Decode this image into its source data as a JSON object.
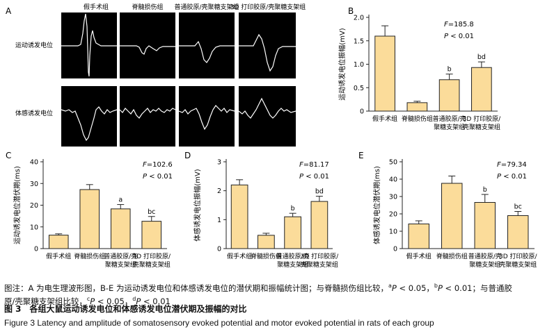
{
  "panel_a": {
    "letter": "A",
    "columns": [
      "假手术组",
      "脊髓损伤组",
      "普通胶原/壳聚糖支架组",
      "3D 打印胶原/壳聚糖支架组"
    ],
    "rows": [
      "运动诱发电位",
      "体感诱发电位"
    ]
  },
  "chart_data": [
    {
      "letter": "B",
      "type": "bar",
      "ylabel": "运动诱发电位振幅(mV)",
      "categories": [
        [
          "假手术组"
        ],
        [
          "脊髓损伤组"
        ],
        [
          "普通胶原/壳",
          "聚糖支架组"
        ],
        [
          "3D 打印胶原/",
          "壳聚糖支架组"
        ]
      ],
      "values": [
        1.6,
        0.18,
        0.67,
        0.93
      ],
      "errors": [
        0.22,
        0.03,
        0.12,
        0.12
      ],
      "marks": [
        "",
        "",
        "b",
        "bd"
      ],
      "ylim": [
        0,
        2.0
      ],
      "yticks": [
        0,
        0.5,
        1.0,
        1.5,
        2.0
      ],
      "yticklabels": [
        "0",
        "0.5",
        "1.0",
        "1.5",
        "2.0"
      ],
      "stat_f": "=185.8",
      "stat_p": "< 0.01"
    },
    {
      "letter": "C",
      "type": "bar",
      "ylabel": "运动诱发电位潜伏期(ms)",
      "categories": [
        [
          "假手术组"
        ],
        [
          "脊髓损伤组"
        ],
        [
          "普通胶原/壳",
          "聚糖支架组"
        ],
        [
          "3D 打印胶原/",
          "壳聚糖支架组"
        ]
      ],
      "values": [
        6.2,
        27.2,
        18.3,
        12.6
      ],
      "errors": [
        0.6,
        2.3,
        2.0,
        2.2
      ],
      "marks": [
        "",
        "",
        "a",
        "bc"
      ],
      "ylim": [
        0,
        40
      ],
      "yticks": [
        0,
        10,
        20,
        30,
        40
      ],
      "yticklabels": [
        "0",
        "10",
        "20",
        "30",
        "40"
      ],
      "stat_f": "=102.6",
      "stat_p": "< 0.01"
    },
    {
      "letter": "D",
      "type": "bar",
      "ylabel": "体感诱发电位振幅(mV)",
      "categories": [
        [
          "假手术组"
        ],
        [
          "脊髓损伤组"
        ],
        [
          "普通胶原/壳",
          "聚糖支架组"
        ],
        [
          "3D 打印胶原/",
          "壳聚糖支架组"
        ]
      ],
      "values": [
        2.2,
        0.46,
        1.1,
        1.63
      ],
      "errors": [
        0.18,
        0.07,
        0.12,
        0.18
      ],
      "marks": [
        "",
        "",
        "b",
        "bd"
      ],
      "ylim": [
        0,
        3
      ],
      "yticks": [
        0,
        1,
        2,
        3
      ],
      "yticklabels": [
        "0",
        "1",
        "2",
        "3"
      ],
      "stat_f": "=81.17",
      "stat_p": "< 0.01"
    },
    {
      "letter": "E",
      "type": "bar",
      "ylabel": "体感诱发电位潜伏期(ms)",
      "categories": [
        [
          "假手术组"
        ],
        [
          "脊髓损伤组"
        ],
        [
          "普通胶原/壳",
          "聚糖支架组"
        ],
        [
          "3D 打印胶原/",
          "壳聚糖支架组"
        ]
      ],
      "values": [
        14.2,
        37.6,
        26.6,
        19.0
      ],
      "errors": [
        1.8,
        4.2,
        4.6,
        2.4
      ],
      "marks": [
        "",
        "",
        "b",
        "bc"
      ],
      "ylim": [
        0,
        50
      ],
      "yticks": [
        0,
        10,
        20,
        30,
        40,
        50
      ],
      "yticklabels": [
        "0",
        "10",
        "20",
        "30",
        "40",
        "50"
      ],
      "stat_f": "=79.34",
      "stat_p": "< 0.01"
    }
  ],
  "stat_letters": {
    "f": "F",
    "p": "P"
  },
  "caption": {
    "line1_a": "图注：A 为电生理波形图，B-E 为运动诱发电位和体感诱发电位的潜伏期和振幅统计图；与脊髓损伤组比较，",
    "line1_sa": "a",
    "line1_b": "P",
    "line1_c": " < 0.05，",
    "line1_sb": "b",
    "line1_d": "P",
    "line1_e": " < 0.01；与普通胶",
    "line2_a": "原/壳聚糖支架组比较，",
    "line2_sc": "c",
    "line2_b": "P",
    "line2_c": " < 0.05，",
    "line2_sd": "d",
    "line2_d": "P",
    "line2_e": " < 0.01",
    "title_cn": "图 3　各组大鼠运动诱发电位和体感诱发电位潜伏期及振幅的对比",
    "title_en": "Figure 3   Latency and amplitude of somatosensory evoked potential and motor evoked potential in rats of each group"
  },
  "colors": {
    "bar_fill": "#fbdc9a",
    "bar_stroke": "#222222",
    "trace_bg": "#000000",
    "trace": "#ffffff"
  }
}
